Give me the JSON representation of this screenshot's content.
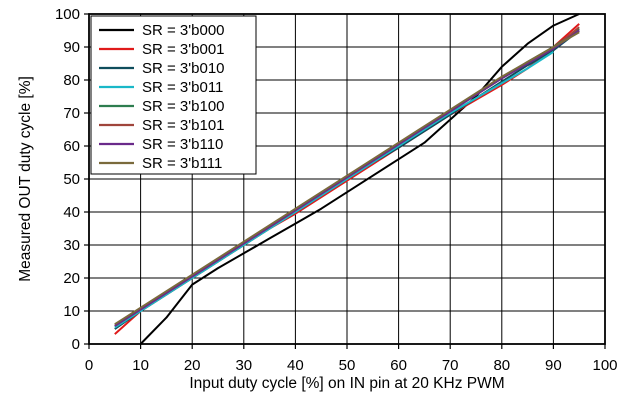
{
  "chart_data": {
    "type": "line",
    "title": "",
    "xlabel": "Input duty cycle [%] on IN pin at 20 KHz PWM",
    "ylabel": "Measured OUT duty cycle [%]",
    "xlim": [
      0,
      100
    ],
    "ylim": [
      0,
      100
    ],
    "xticks": [
      "0",
      "10",
      "20",
      "30",
      "40",
      "50",
      "60",
      "70",
      "80",
      "90",
      "100"
    ],
    "yticks": [
      "0",
      "10",
      "20",
      "30",
      "40",
      "50",
      "60",
      "70",
      "80",
      "90",
      "100"
    ],
    "grid": true,
    "legend_position": "top-left",
    "series": [
      {
        "name": "SR = 3'b000",
        "color": "#000000",
        "x": [
          10,
          15,
          20,
          25,
          30,
          35,
          40,
          45,
          50,
          55,
          60,
          65,
          70,
          75,
          80,
          85,
          90,
          95
        ],
        "y": [
          0,
          8,
          18,
          23,
          27.5,
          32,
          36.5,
          41,
          46,
          51,
          56,
          61,
          68,
          75,
          84,
          91,
          96.5,
          100
        ]
      },
      {
        "name": "SR = 3'b001",
        "color": "#e01a1a",
        "x": [
          5,
          10,
          15,
          20,
          25,
          30,
          35,
          40,
          45,
          50,
          55,
          60,
          65,
          70,
          75,
          80,
          85,
          90,
          95
        ],
        "y": [
          3,
          10,
          15,
          20,
          25,
          30,
          35,
          39.5,
          44.5,
          49.5,
          54.5,
          59.5,
          64.5,
          69.5,
          74,
          78.5,
          83.5,
          90,
          97
        ]
      },
      {
        "name": "SR = 3'b010",
        "color": "#0f4d5c",
        "x": [
          5,
          10,
          15,
          20,
          25,
          30,
          35,
          40,
          45,
          50,
          55,
          60,
          65,
          70,
          75,
          80,
          85,
          90,
          95
        ],
        "y": [
          4.5,
          10,
          15,
          20,
          25,
          30,
          35,
          40,
          45,
          50,
          55,
          59.5,
          64.5,
          69.5,
          74.5,
          79.5,
          84.5,
          89,
          95
        ]
      },
      {
        "name": "SR = 3'b011",
        "color": "#1ab8c8",
        "x": [
          5,
          10,
          15,
          20,
          25,
          30,
          35,
          40,
          45,
          50,
          55,
          60,
          65,
          70,
          75,
          80,
          85,
          90
        ],
        "y": [
          5,
          10,
          15,
          20,
          25,
          30,
          35,
          40,
          45,
          50,
          55,
          60,
          65,
          70,
          74.5,
          79,
          83.5,
          88.5
        ]
      },
      {
        "name": "SR = 3'b100",
        "color": "#2e7d4f",
        "x": [
          5,
          10,
          15,
          20,
          25,
          30,
          35,
          40,
          45,
          50,
          55,
          60,
          65,
          70,
          75,
          80,
          85,
          90,
          95
        ],
        "y": [
          5.5,
          10.5,
          15.5,
          20.5,
          25.5,
          30.5,
          35.5,
          40.5,
          45.5,
          50.5,
          55.5,
          60.5,
          65.5,
          70.5,
          75.5,
          80.5,
          85.5,
          90,
          95.5
        ]
      },
      {
        "name": "SR = 3'b101",
        "color": "#a0453c",
        "x": [
          5,
          10,
          15,
          20,
          25,
          30,
          35,
          40,
          45,
          50,
          55,
          60,
          65,
          70,
          75,
          80,
          85,
          90,
          95
        ],
        "y": [
          5.5,
          10.5,
          15.5,
          20.5,
          25.5,
          30.5,
          35.5,
          40.5,
          45.5,
          50.5,
          55.5,
          60.5,
          65.5,
          70.5,
          75.5,
          80.5,
          85,
          89.5,
          96
        ]
      },
      {
        "name": "SR = 3'b110",
        "color": "#6a2a8a",
        "x": [
          5,
          10,
          15,
          20,
          25,
          30,
          35,
          40,
          45,
          50,
          55,
          60,
          65,
          70,
          75,
          80,
          85,
          90,
          95
        ],
        "y": [
          5.5,
          10.5,
          15.5,
          20.5,
          25.5,
          30.5,
          35.5,
          40.5,
          45.5,
          50.5,
          55.5,
          60.5,
          65.5,
          70.5,
          75.5,
          80.5,
          85,
          89.5,
          95
        ]
      },
      {
        "name": "SR = 3'b111",
        "color": "#7a6a3c",
        "x": [
          5,
          10,
          15,
          20,
          25,
          30,
          35,
          40,
          45,
          50,
          55,
          60,
          65,
          70,
          75,
          80,
          85,
          90,
          95
        ],
        "y": [
          6,
          11,
          16,
          21,
          26,
          31,
          36,
          41,
          46,
          51,
          56,
          61,
          66,
          71,
          76,
          81,
          85.5,
          90,
          94.5
        ]
      }
    ]
  }
}
